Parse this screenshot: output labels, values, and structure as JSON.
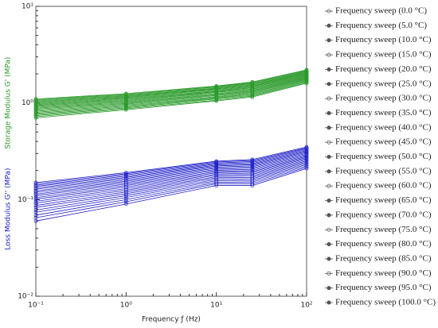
{
  "chart_data": {
    "type": "line",
    "y_label_storage": "Storage Modulus G' (MPa)",
    "y_label_loss": "Loss Modulus G'' (MPa)",
    "x_label": "Frequency ƒ (Hz)",
    "log_x": true,
    "log_y": true,
    "colors": {
      "storage": "#2a9a2a",
      "loss": "#2020c8"
    },
    "x": [
      0.1,
      1,
      10,
      25,
      100
    ],
    "xlim": [
      0.1,
      100
    ],
    "xticks": [
      {
        "value": 0.1,
        "label": "10⁻¹"
      },
      {
        "value": 1,
        "label": "10⁰"
      },
      {
        "value": 10,
        "label": "10¹"
      },
      {
        "value": 100,
        "label": "10²"
      }
    ],
    "ylim": [
      0.01,
      10
    ],
    "yticks": [
      {
        "value": 0.01,
        "label": "10⁻²"
      },
      {
        "value": 0.1,
        "label": "10⁻¹"
      },
      {
        "value": 1,
        "label": "10⁰"
      },
      {
        "value": 10,
        "label": "10¹"
      }
    ],
    "series": [
      {
        "name": "Frequency sweep (0.0 °C)",
        "values": [
          1.1,
          1.25,
          1.5,
          1.65,
          2.2
        ],
        "loss_values": [
          0.15,
          0.19,
          0.25,
          0.26,
          0.35
        ]
      },
      {
        "name": "Frequency sweep (5.0 °C)",
        "values": [
          1.08,
          1.23,
          1.48,
          1.63,
          2.17
        ],
        "loss_values": [
          0.146,
          0.185,
          0.245,
          0.254,
          0.343
        ]
      },
      {
        "name": "Frequency sweep (10.0 °C)",
        "values": [
          1.06,
          1.21,
          1.46,
          1.6,
          2.14
        ],
        "loss_values": [
          0.141,
          0.18,
          0.239,
          0.248,
          0.336
        ]
      },
      {
        "name": "Frequency sweep (15.0 °C)",
        "values": [
          1.04,
          1.19,
          1.43,
          1.58,
          2.11
        ],
        "loss_values": [
          0.137,
          0.175,
          0.234,
          0.242,
          0.329
        ]
      },
      {
        "name": "Frequency sweep (20.0 °C)",
        "values": [
          1.02,
          1.17,
          1.41,
          1.55,
          2.08
        ],
        "loss_values": [
          0.132,
          0.17,
          0.228,
          0.236,
          0.322
        ]
      },
      {
        "name": "Frequency sweep (25.0 °C)",
        "values": [
          1.0,
          1.15,
          1.39,
          1.53,
          2.05
        ],
        "loss_values": [
          0.128,
          0.165,
          0.223,
          0.23,
          0.315
        ]
      },
      {
        "name": "Frequency sweep (30.0 °C)",
        "values": [
          0.98,
          1.13,
          1.37,
          1.5,
          2.02
        ],
        "loss_values": [
          0.123,
          0.16,
          0.217,
          0.224,
          0.308
        ]
      },
      {
        "name": "Frequency sweep (35.0 °C)",
        "values": [
          0.96,
          1.11,
          1.34,
          1.48,
          1.99
        ],
        "loss_values": [
          0.119,
          0.155,
          0.212,
          0.218,
          0.301
        ]
      },
      {
        "name": "Frequency sweep (40.0 °C)",
        "values": [
          0.94,
          1.09,
          1.32,
          1.45,
          1.96
        ],
        "loss_values": [
          0.114,
          0.15,
          0.206,
          0.212,
          0.294
        ]
      },
      {
        "name": "Frequency sweep (45.0 °C)",
        "values": [
          0.92,
          1.07,
          1.3,
          1.43,
          1.93
        ],
        "loss_values": [
          0.11,
          0.145,
          0.201,
          0.206,
          0.287
        ]
      },
      {
        "name": "Frequency sweep (50.0 °C)",
        "values": [
          0.9,
          1.05,
          1.28,
          1.4,
          1.9
        ],
        "loss_values": [
          0.105,
          0.14,
          0.195,
          0.2,
          0.28
        ]
      },
      {
        "name": "Frequency sweep (55.0 °C)",
        "values": [
          0.88,
          1.03,
          1.25,
          1.38,
          1.87
        ],
        "loss_values": [
          0.101,
          0.135,
          0.19,
          0.194,
          0.273
        ]
      },
      {
        "name": "Frequency sweep (60.0 °C)",
        "values": [
          0.86,
          1.01,
          1.23,
          1.35,
          1.84
        ],
        "loss_values": [
          0.096,
          0.13,
          0.184,
          0.188,
          0.266
        ]
      },
      {
        "name": "Frequency sweep (65.0 °C)",
        "values": [
          0.84,
          0.99,
          1.21,
          1.33,
          1.81
        ],
        "loss_values": [
          0.092,
          0.125,
          0.179,
          0.182,
          0.259
        ]
      },
      {
        "name": "Frequency sweep (70.0 °C)",
        "values": [
          0.82,
          0.97,
          1.19,
          1.3,
          1.78
        ],
        "loss_values": [
          0.087,
          0.12,
          0.173,
          0.176,
          0.252
        ]
      },
      {
        "name": "Frequency sweep (75.0 °C)",
        "values": [
          0.8,
          0.95,
          1.16,
          1.28,
          1.75
        ],
        "loss_values": [
          0.083,
          0.115,
          0.168,
          0.17,
          0.245
        ]
      },
      {
        "name": "Frequency sweep (80.0 °C)",
        "values": [
          0.78,
          0.93,
          1.14,
          1.25,
          1.72
        ],
        "loss_values": [
          0.078,
          0.11,
          0.162,
          0.164,
          0.238
        ]
      },
      {
        "name": "Frequency sweep (85.0 °C)",
        "values": [
          0.76,
          0.91,
          1.12,
          1.23,
          1.69
        ],
        "loss_values": [
          0.074,
          0.105,
          0.157,
          0.158,
          0.231
        ]
      },
      {
        "name": "Frequency sweep (90.0 °C)",
        "values": [
          0.74,
          0.89,
          1.1,
          1.2,
          1.66
        ],
        "loss_values": [
          0.069,
          0.1,
          0.151,
          0.152,
          0.224
        ]
      },
      {
        "name": "Frequency sweep (95.0 °C)",
        "values": [
          0.72,
          0.87,
          1.07,
          1.18,
          1.63
        ],
        "loss_values": [
          0.065,
          0.095,
          0.146,
          0.146,
          0.217
        ]
      },
      {
        "name": "Frequency sweep (100.0 °C)",
        "values": [
          0.7,
          0.85,
          1.05,
          1.15,
          1.6
        ],
        "loss_values": [
          0.06,
          0.09,
          0.14,
          0.14,
          0.21
        ]
      }
    ]
  }
}
